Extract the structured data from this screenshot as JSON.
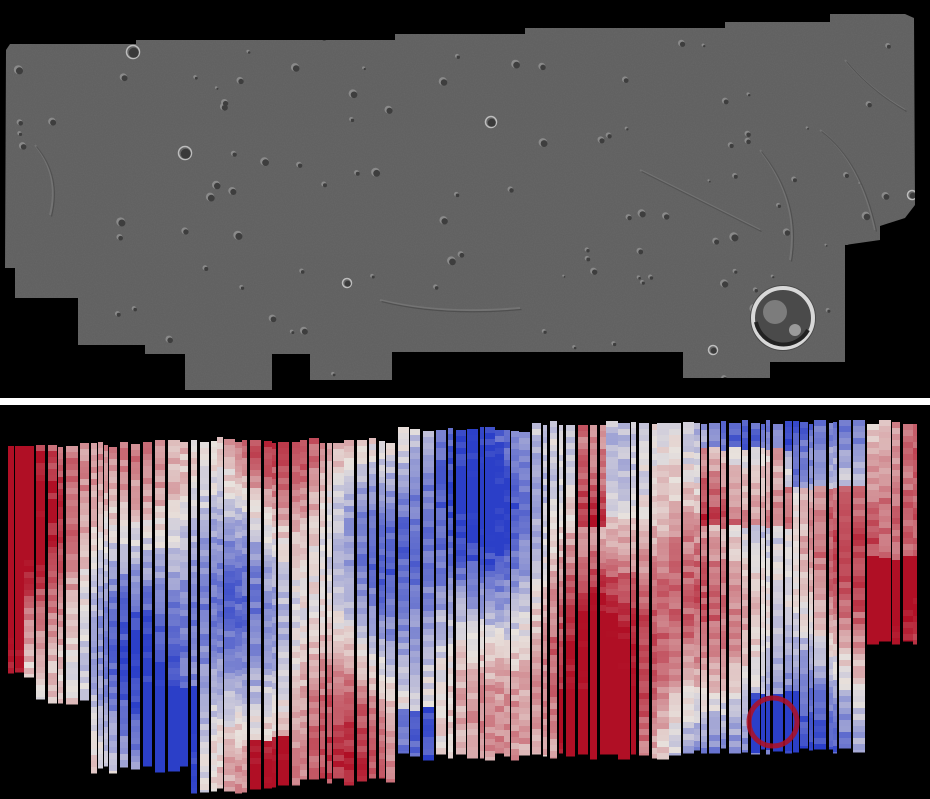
{
  "figure": {
    "panels": [
      {
        "kind": "shaded-relief mosaic",
        "palette": {
          "background": "#000000",
          "terrain": "#5f5f5f",
          "terrain_light": "#6a6a6a",
          "terrain_dark": "#4a4a4a"
        }
      },
      {
        "kind": "diverging color map strips",
        "palette": {
          "background": "#000000",
          "low": "#2b3fc8",
          "mid": "#e8e2dd",
          "high": "#b00f25"
        }
      }
    ],
    "separator_color": "#ffffff"
  }
}
